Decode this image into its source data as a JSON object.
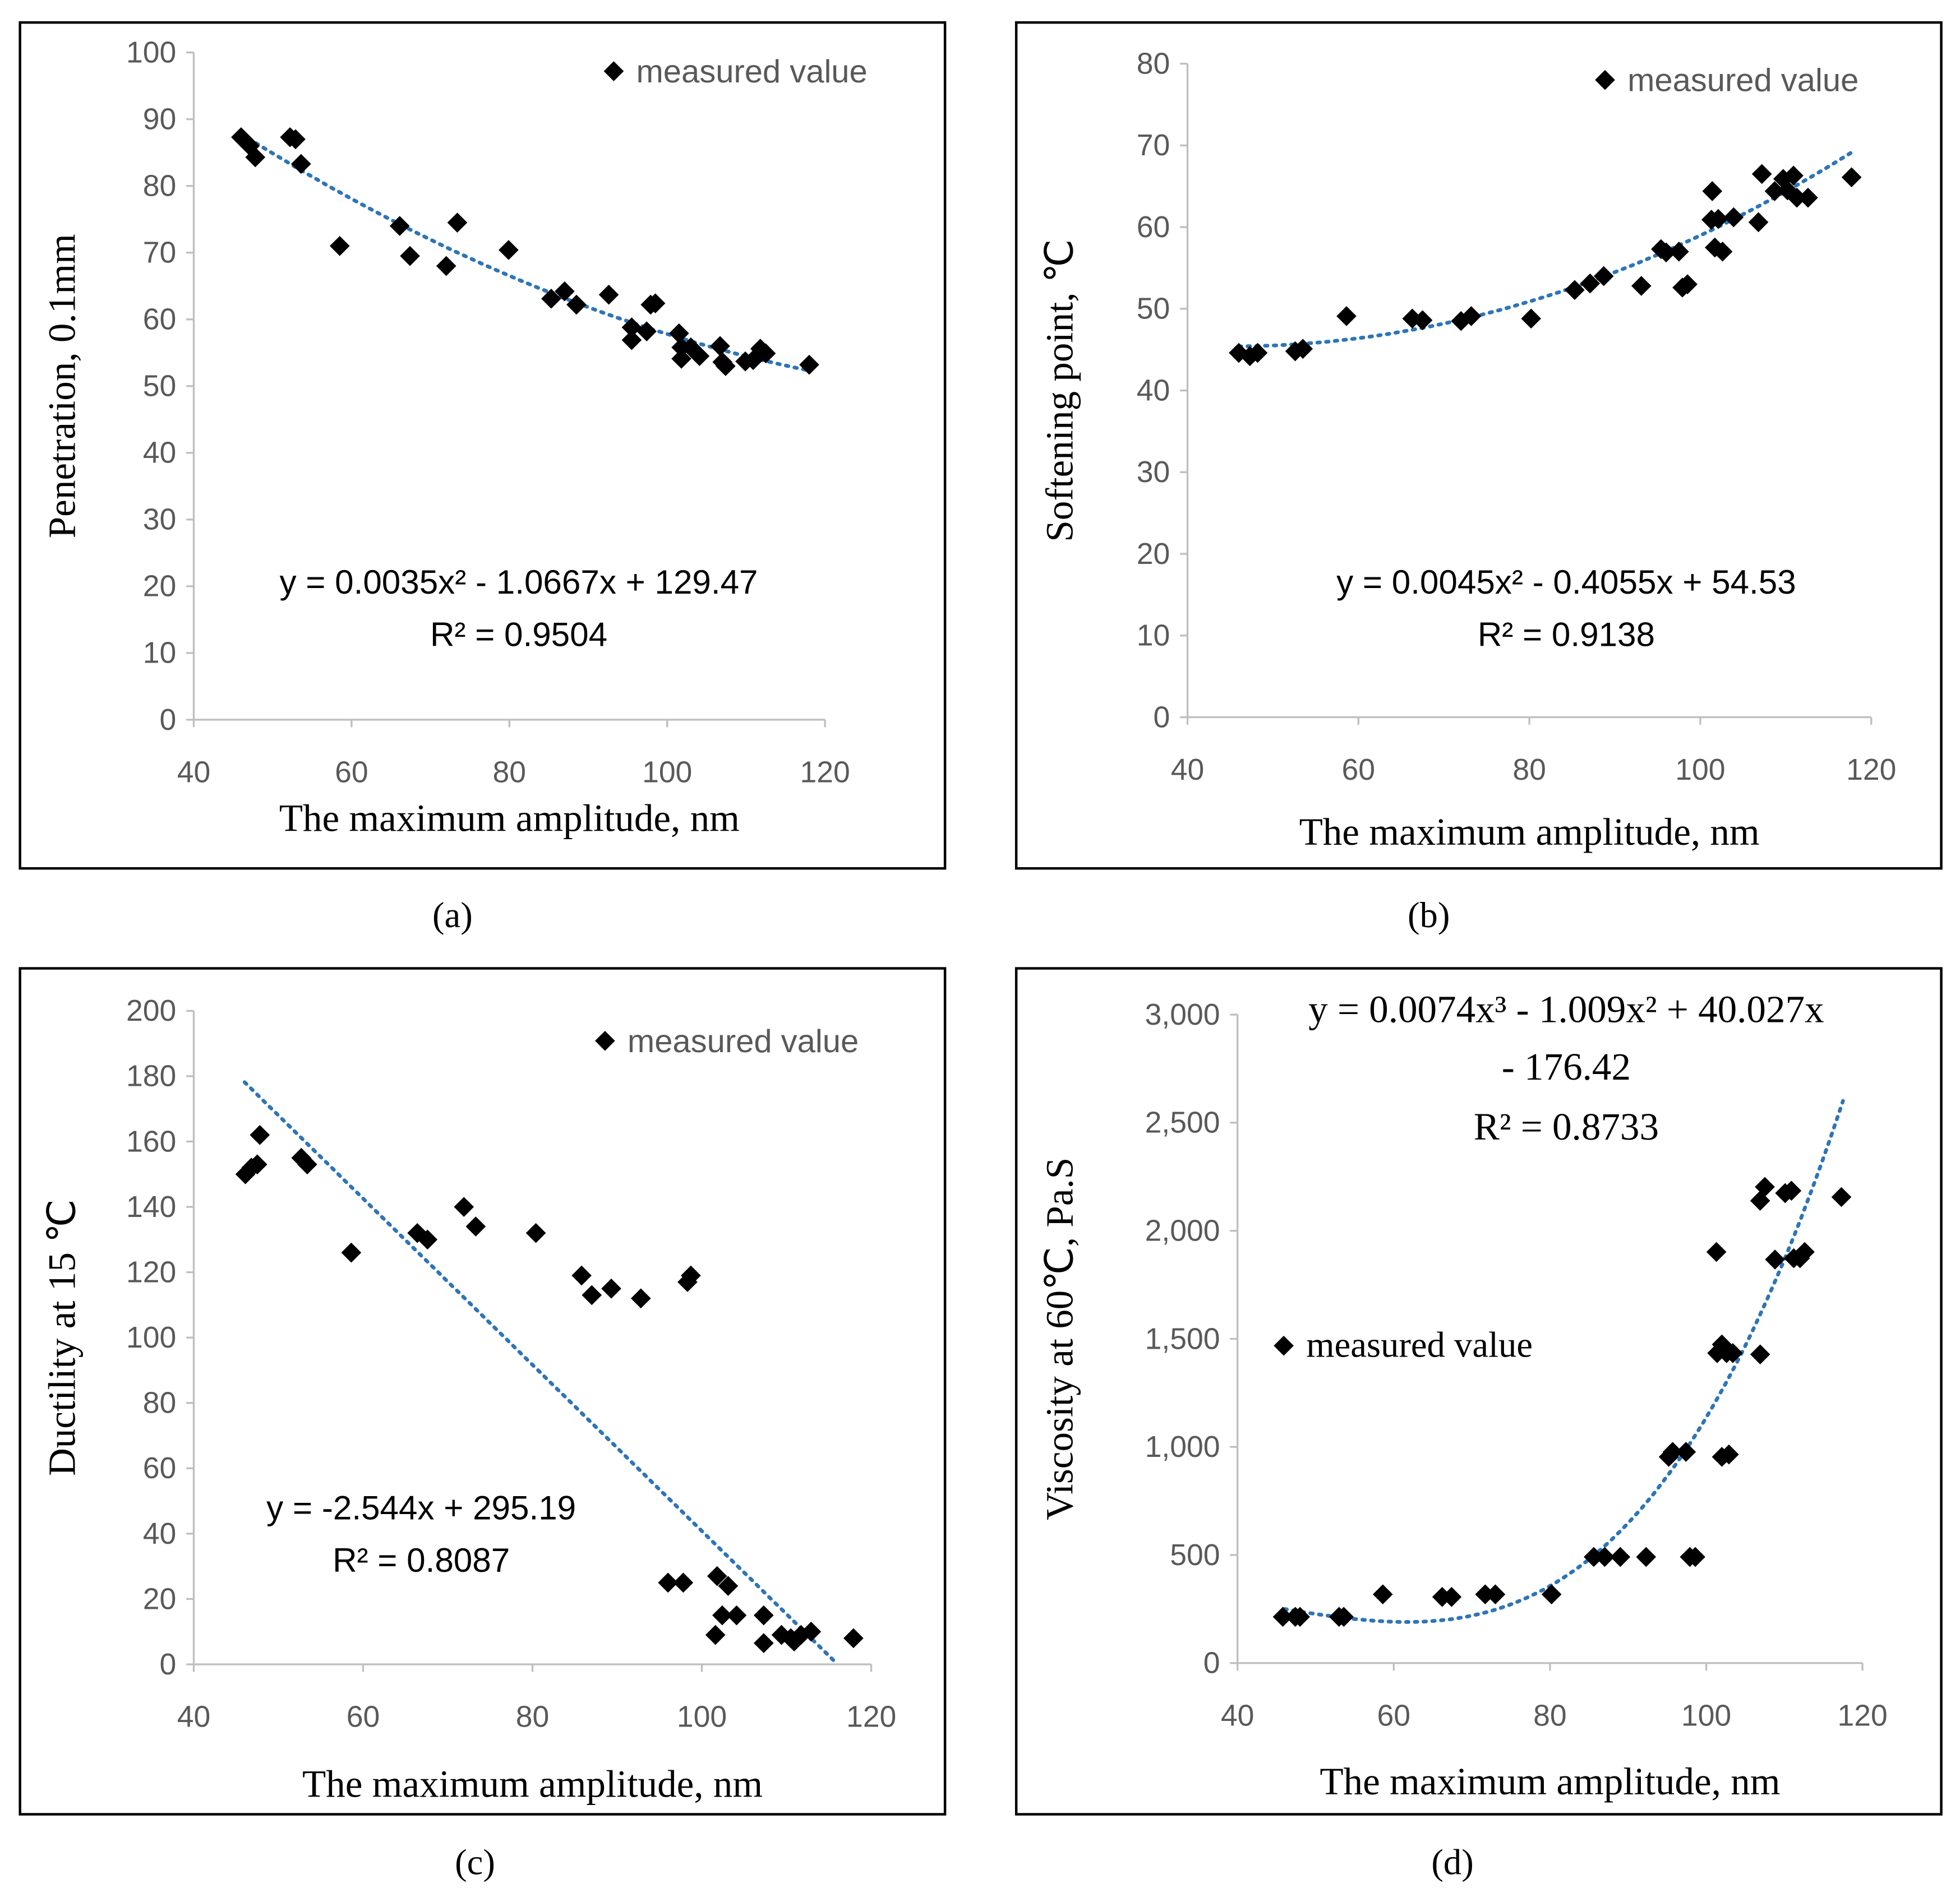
{
  "colors": {
    "marker": "#000000",
    "trend": "#2E75B6",
    "axis": "#BFBFBF",
    "frame": "#000000"
  },
  "chart_data": [
    {
      "id": "a",
      "caption": "(a)",
      "type": "scatter",
      "xlabel": "The maximum amplitude, nm",
      "ylabel": "Penetration, 0.1mm",
      "xlim": [
        40,
        120
      ],
      "xticks": [
        40,
        60,
        80,
        100,
        120
      ],
      "ylim": [
        0,
        100
      ],
      "yticks": [
        0,
        10,
        20,
        30,
        40,
        50,
        60,
        70,
        80,
        90,
        100
      ],
      "legend": "measured value",
      "legend_position": "top-right",
      "equation": [
        "y = 0.0035x² - 1.0667x + 129.47",
        "R² = 0.9504"
      ],
      "trend": {
        "type": "poly",
        "coef": [
          129.47,
          -1.0667,
          0.0035
        ],
        "range": [
          46,
          118
        ]
      },
      "points": [
        [
          46,
          87.3
        ],
        [
          47.1,
          86
        ],
        [
          47.8,
          84.3
        ],
        [
          52.2,
          87.3
        ],
        [
          52.9,
          87
        ],
        [
          53.6,
          83.3
        ],
        [
          58.5,
          71
        ],
        [
          66.1,
          74
        ],
        [
          67.4,
          69.5
        ],
        [
          72,
          68
        ],
        [
          73.4,
          74.5
        ],
        [
          79.9,
          70.4
        ],
        [
          85.3,
          63.1
        ],
        [
          87,
          64.2
        ],
        [
          88.5,
          62.2
        ],
        [
          92.6,
          63.7
        ],
        [
          95.5,
          58.8
        ],
        [
          95.5,
          56.9
        ],
        [
          97.4,
          58.2
        ],
        [
          97.9,
          62.2
        ],
        [
          98.5,
          62.4
        ],
        [
          101.5,
          57.9
        ],
        [
          101.8,
          55.8
        ],
        [
          101.8,
          54.1
        ],
        [
          103,
          55.8
        ],
        [
          104.1,
          54.5
        ],
        [
          106.7,
          56
        ],
        [
          107,
          53.6
        ],
        [
          107.4,
          53
        ],
        [
          109.9,
          53.7
        ],
        [
          110.9,
          53.9
        ],
        [
          111.8,
          55.6
        ],
        [
          112.5,
          54.9
        ],
        [
          118,
          53.2
        ]
      ]
    },
    {
      "id": "b",
      "caption": "(b)",
      "type": "scatter",
      "xlabel": "The maximum amplitude, nm",
      "ylabel": "Softening point, ℃",
      "xlim": [
        40,
        120
      ],
      "xticks": [
        40,
        60,
        80,
        100,
        120
      ],
      "ylim": [
        0,
        80
      ],
      "yticks": [
        0,
        10,
        20,
        30,
        40,
        50,
        60,
        70,
        80
      ],
      "legend": "measured value",
      "legend_position": "top-right",
      "equation": [
        "y = 0.0045x² - 0.4055x + 54.53",
        "R² = 0.9138"
      ],
      "trend": {
        "type": "poly",
        "coef": [
          54.53,
          -0.4055,
          0.0045
        ],
        "range": [
          46,
          118
        ]
      },
      "points": [
        [
          46,
          44.6
        ],
        [
          47.3,
          44.2
        ],
        [
          48.2,
          44.6
        ],
        [
          52.6,
          44.8
        ],
        [
          53.5,
          45.1
        ],
        [
          58.6,
          49.1
        ],
        [
          66.3,
          48.8
        ],
        [
          67.5,
          48.6
        ],
        [
          72,
          48.5
        ],
        [
          73.2,
          49.1
        ],
        [
          80.2,
          48.8
        ],
        [
          85.3,
          52.3
        ],
        [
          87.1,
          53.1
        ],
        [
          88.7,
          54
        ],
        [
          93.1,
          52.8
        ],
        [
          95.4,
          57.3
        ],
        [
          96,
          56.9
        ],
        [
          97.5,
          57
        ],
        [
          97.9,
          52.6
        ],
        [
          98.5,
          53
        ],
        [
          101.4,
          64.4
        ],
        [
          101.3,
          60.9
        ],
        [
          102.1,
          61
        ],
        [
          101.7,
          57.5
        ],
        [
          102.6,
          57
        ],
        [
          103.9,
          61.2
        ],
        [
          106.8,
          60.6
        ],
        [
          107.2,
          66.5
        ],
        [
          108.7,
          64.4
        ],
        [
          109.7,
          65.9
        ],
        [
          110.2,
          64.5
        ],
        [
          110.9,
          66.3
        ],
        [
          111.3,
          63.6
        ],
        [
          112.6,
          63.6
        ],
        [
          117.7,
          66.1
        ]
      ]
    },
    {
      "id": "c",
      "caption": "(c)",
      "type": "scatter",
      "xlabel": "The maximum amplitude, nm",
      "ylabel": "Ductility at 15 ℃",
      "xlim": [
        40,
        120
      ],
      "xticks": [
        40,
        60,
        80,
        100,
        120
      ],
      "ylim": [
        0,
        200
      ],
      "yticks": [
        0,
        20,
        40,
        60,
        80,
        100,
        120,
        140,
        160,
        180,
        200
      ],
      "legend": "measured value",
      "legend_position": "top-right",
      "equation": [
        "y = -2.544x + 295.19",
        "R² = 0.8087"
      ],
      "trend": {
        "type": "poly",
        "coef": [
          295.19,
          -2.544
        ],
        "range": [
          46,
          116
        ]
      },
      "points": [
        [
          46.1,
          150
        ],
        [
          46.8,
          152
        ],
        [
          47.5,
          153
        ],
        [
          47.8,
          162
        ],
        [
          52.7,
          155
        ],
        [
          53.4,
          153
        ],
        [
          58.6,
          126
        ],
        [
          66.4,
          132
        ],
        [
          67.6,
          130
        ],
        [
          71.9,
          140
        ],
        [
          73.3,
          134
        ],
        [
          80.4,
          132
        ],
        [
          85.8,
          119
        ],
        [
          87,
          113
        ],
        [
          89.3,
          115
        ],
        [
          92.8,
          112
        ],
        [
          98.3,
          117
        ],
        [
          98.7,
          119
        ],
        [
          96,
          25
        ],
        [
          97.8,
          25
        ],
        [
          101.8,
          27
        ],
        [
          101.6,
          9
        ],
        [
          102.4,
          15
        ],
        [
          103.1,
          24
        ],
        [
          104.1,
          15
        ],
        [
          107.3,
          15
        ],
        [
          107.3,
          6.5
        ],
        [
          109.4,
          9
        ],
        [
          110.5,
          8
        ],
        [
          110.9,
          7
        ],
        [
          111.7,
          9
        ],
        [
          112.9,
          10
        ],
        [
          117.9,
          8
        ]
      ]
    },
    {
      "id": "d",
      "caption": "(d)",
      "type": "scatter",
      "xlabel": "The maximum amplitude, nm",
      "ylabel": "Viscosity at 60℃, Pa.S",
      "xlim": [
        40,
        120
      ],
      "xticks": [
        40,
        60,
        80,
        100,
        120
      ],
      "ylim": [
        0,
        3000
      ],
      "yticks": [
        0,
        500,
        1000,
        1500,
        2000,
        2500,
        3000
      ],
      "ytick_labels": [
        "0",
        "500",
        "1,000",
        "1,500",
        "2,000",
        "2,500",
        "3,000"
      ],
      "legend": "measured value",
      "legend_position": "middle-left",
      "equation": [
        "y = 0.0074x³ - 1.009x² + 40.027x",
        "- 176.42",
        "R² = 0.8733"
      ],
      "trend": {
        "type": "poly",
        "coef": [
          -176.42,
          40.027,
          -1.009,
          0.0074
        ],
        "range": [
          46,
          117.5
        ]
      },
      "points": [
        [
          45.8,
          214
        ],
        [
          47.4,
          214
        ],
        [
          48,
          214
        ],
        [
          53,
          214
        ],
        [
          53.6,
          214
        ],
        [
          58.6,
          318
        ],
        [
          66.2,
          306
        ],
        [
          67.4,
          306
        ],
        [
          71.7,
          318
        ],
        [
          73,
          318
        ],
        [
          80.2,
          318
        ],
        [
          85.6,
          491
        ],
        [
          87,
          491
        ],
        [
          89,
          491
        ],
        [
          92.3,
          491
        ],
        [
          95.2,
          954
        ],
        [
          95.7,
          977
        ],
        [
          97.4,
          977
        ],
        [
          97.9,
          491
        ],
        [
          98.6,
          491
        ],
        [
          101.3,
          1902
        ],
        [
          101.4,
          1434
        ],
        [
          102,
          1474
        ],
        [
          102.6,
          1434
        ],
        [
          102,
          954
        ],
        [
          102.9,
          965
        ],
        [
          103.4,
          1434
        ],
        [
          106.9,
          1428
        ],
        [
          106.9,
          2139
        ],
        [
          107.5,
          2203
        ],
        [
          108.8,
          1867
        ],
        [
          110.1,
          2174
        ],
        [
          110.9,
          2185
        ],
        [
          111.2,
          1873
        ],
        [
          112,
          1873
        ],
        [
          112.6,
          1902
        ],
        [
          117.3,
          2156
        ]
      ]
    }
  ]
}
